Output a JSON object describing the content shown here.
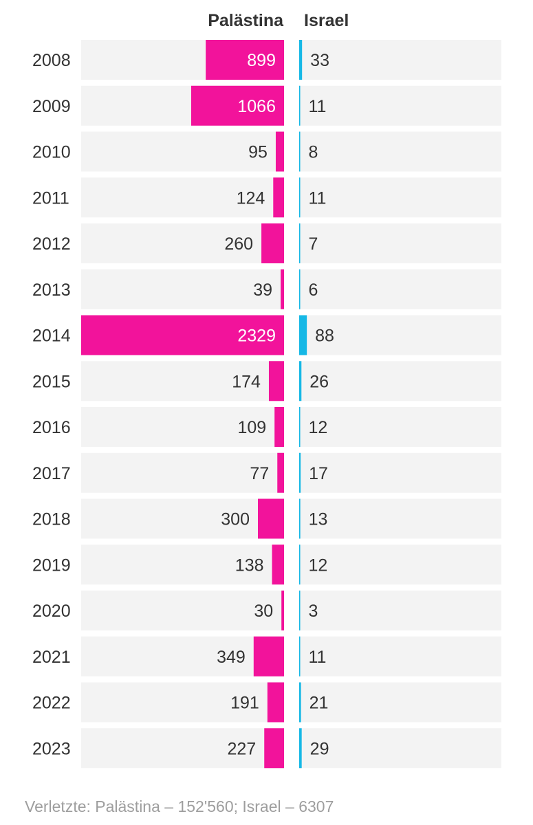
{
  "colors": {
    "palestine": "#f2139b",
    "israel": "#16b8e6",
    "row_bg": "#f3f3f3",
    "text": "#333333",
    "text_inverse": "#ffffff",
    "footer": "#9e9e9e"
  },
  "chart_data": {
    "type": "bar",
    "title": "",
    "xlabel": "",
    "ylabel": "",
    "categories": [
      "2008",
      "2009",
      "2010",
      "2011",
      "2012",
      "2013",
      "2014",
      "2015",
      "2016",
      "2017",
      "2018",
      "2019",
      "2020",
      "2021",
      "2022",
      "2023"
    ],
    "series": [
      {
        "name": "Palästina",
        "values": [
          899,
          1066,
          95,
          124,
          260,
          39,
          2329,
          174,
          109,
          77,
          300,
          138,
          30,
          349,
          191,
          227
        ]
      },
      {
        "name": "Israel",
        "values": [
          33,
          11,
          8,
          11,
          7,
          6,
          88,
          26,
          12,
          17,
          13,
          12,
          3,
          11,
          21,
          29
        ]
      }
    ],
    "xlim_palestine": [
      0,
      2329
    ],
    "xlim_israel": [
      0,
      2329
    ],
    "orientation": "horizontal-diverging"
  },
  "footer": {
    "text": "Verletzte: Palästina – 152'560; Israel – 6307"
  }
}
